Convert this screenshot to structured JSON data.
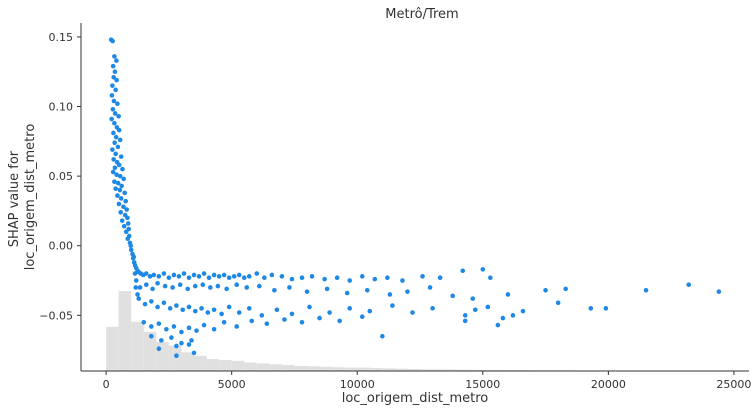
{
  "chart_data": {
    "type": "scatter",
    "title": "Metrô/Trem",
    "xlabel": "loc_origem_dist_metro",
    "ylabel_lines": [
      "SHAP value for",
      "loc_origem_dist_metro"
    ],
    "xlim": [
      -1000,
      25600
    ],
    "ylim": [
      -0.09,
      0.16
    ],
    "x_ticks": [
      0,
      5000,
      10000,
      15000,
      20000,
      25000
    ],
    "x_tick_labels": [
      "0",
      "5000",
      "10000",
      "15000",
      "20000",
      "25000"
    ],
    "y_ticks": [
      -0.05,
      0.0,
      0.05,
      0.1,
      0.15
    ],
    "y_tick_labels": [
      "−0.05",
      "0.00",
      "0.05",
      "0.10",
      "0.15"
    ],
    "point_color": "#1e88e5",
    "histogram_color": "#e0e0e0",
    "histogram_bin_width": 500,
    "histogram_heights": [
      0.26,
      0.47,
      0.29,
      0.23,
      0.17,
      0.15,
      0.11,
      0.09,
      0.07,
      0.065,
      0.06,
      0.05,
      0.045,
      0.04,
      0.035,
      0.03,
      0.028,
      0.025,
      0.022,
      0.02,
      0.02,
      0.018,
      0.016,
      0.014,
      0.012,
      0.01,
      0.01,
      0.009,
      0.008,
      0.007,
      0.006,
      0.006,
      0.005,
      0.005,
      0.004,
      0.004,
      0.004,
      0.003,
      0.003,
      0.003,
      0.003,
      0.003,
      0.002,
      0.002,
      0.002,
      0.002,
      0.002,
      0.002,
      0.002,
      0.002
    ],
    "points": [
      [
        200,
        0.148
      ],
      [
        260,
        0.147
      ],
      [
        330,
        0.136
      ],
      [
        410,
        0.133
      ],
      [
        280,
        0.129
      ],
      [
        350,
        0.125
      ],
      [
        300,
        0.121
      ],
      [
        420,
        0.119
      ],
      [
        250,
        0.115
      ],
      [
        380,
        0.112
      ],
      [
        230,
        0.108
      ],
      [
        310,
        0.104
      ],
      [
        450,
        0.102
      ],
      [
        270,
        0.098
      ],
      [
        360,
        0.095
      ],
      [
        500,
        0.093
      ],
      [
        220,
        0.091
      ],
      [
        330,
        0.088
      ],
      [
        430,
        0.085
      ],
      [
        520,
        0.083
      ],
      [
        290,
        0.081
      ],
      [
        400,
        0.078
      ],
      [
        560,
        0.076
      ],
      [
        340,
        0.074
      ],
      [
        470,
        0.071
      ],
      [
        250,
        0.069
      ],
      [
        380,
        0.066
      ],
      [
        600,
        0.064
      ],
      [
        300,
        0.062
      ],
      [
        440,
        0.06
      ],
      [
        520,
        0.058
      ],
      [
        350,
        0.056
      ],
      [
        650,
        0.055
      ],
      [
        280,
        0.053
      ],
      [
        420,
        0.051
      ],
      [
        560,
        0.05
      ],
      [
        700,
        0.048
      ],
      [
        330,
        0.046
      ],
      [
        480,
        0.045
      ],
      [
        620,
        0.043
      ],
      [
        380,
        0.041
      ],
      [
        550,
        0.04
      ],
      [
        740,
        0.038
      ],
      [
        450,
        0.036
      ],
      [
        600,
        0.034
      ],
      [
        780,
        0.032
      ],
      [
        510,
        0.03
      ],
      [
        690,
        0.028
      ],
      [
        820,
        0.026
      ],
      [
        580,
        0.024
      ],
      [
        760,
        0.022
      ],
      [
        850,
        0.02
      ],
      [
        640,
        0.018
      ],
      [
        880,
        0.016
      ],
      [
        720,
        0.014
      ],
      [
        900,
        0.012
      ],
      [
        800,
        0.01
      ],
      [
        920,
        0.007
      ],
      [
        860,
        0.005
      ],
      [
        950,
        0.002
      ],
      [
        980,
        0.0
      ],
      [
        1000,
        -0.003
      ],
      [
        1050,
        -0.006
      ],
      [
        1080,
        -0.009
      ],
      [
        1120,
        -0.012
      ],
      [
        1150,
        -0.014
      ],
      [
        1200,
        -0.016
      ],
      [
        1250,
        -0.018
      ],
      [
        1300,
        -0.019
      ],
      [
        1380,
        -0.02
      ],
      [
        1480,
        -0.021
      ],
      [
        1600,
        -0.02
      ],
      [
        1750,
        -0.022
      ],
      [
        1900,
        -0.021
      ],
      [
        2100,
        -0.022
      ],
      [
        2300,
        -0.02
      ],
      [
        2500,
        -0.023
      ],
      [
        2700,
        -0.021
      ],
      [
        2900,
        -0.022
      ],
      [
        3100,
        -0.02
      ],
      [
        3300,
        -0.023
      ],
      [
        3500,
        -0.021
      ],
      [
        3700,
        -0.022
      ],
      [
        3900,
        -0.02
      ],
      [
        4100,
        -0.023
      ],
      [
        4300,
        -0.021
      ],
      [
        4500,
        -0.022
      ],
      [
        4700,
        -0.021
      ],
      [
        4900,
        -0.023
      ],
      [
        5100,
        -0.022
      ],
      [
        5300,
        -0.021
      ],
      [
        5500,
        -0.023
      ],
      [
        5700,
        -0.022
      ],
      [
        6000,
        -0.02
      ],
      [
        6300,
        -0.023
      ],
      [
        6600,
        -0.021
      ],
      [
        7000,
        -0.022
      ],
      [
        7400,
        -0.024
      ],
      [
        7800,
        -0.023
      ],
      [
        8200,
        -0.022
      ],
      [
        8700,
        -0.024
      ],
      [
        9200,
        -0.023
      ],
      [
        9700,
        -0.025
      ],
      [
        10200,
        -0.022
      ],
      [
        10700,
        -0.024
      ],
      [
        11200,
        -0.023
      ],
      [
        11800,
        -0.025
      ],
      [
        12600,
        -0.022
      ],
      [
        13300,
        -0.023
      ],
      [
        14200,
        -0.018
      ],
      [
        15000,
        -0.017
      ],
      [
        15300,
        -0.023
      ],
      [
        1350,
        -0.03
      ],
      [
        1600,
        -0.028
      ],
      [
        1850,
        -0.031
      ],
      [
        2050,
        -0.027
      ],
      [
        2350,
        -0.029
      ],
      [
        2650,
        -0.03
      ],
      [
        2950,
        -0.028
      ],
      [
        3250,
        -0.031
      ],
      [
        3550,
        -0.029
      ],
      [
        3850,
        -0.028
      ],
      [
        4150,
        -0.03
      ],
      [
        4450,
        -0.029
      ],
      [
        4800,
        -0.031
      ],
      [
        5200,
        -0.028
      ],
      [
        5600,
        -0.03
      ],
      [
        6100,
        -0.029
      ],
      [
        6700,
        -0.032
      ],
      [
        7300,
        -0.03
      ],
      [
        8000,
        -0.033
      ],
      [
        8800,
        -0.031
      ],
      [
        9600,
        -0.034
      ],
      [
        10400,
        -0.032
      ],
      [
        11300,
        -0.035
      ],
      [
        12000,
        -0.033
      ],
      [
        12900,
        -0.03
      ],
      [
        13800,
        -0.036
      ],
      [
        14600,
        -0.038
      ],
      [
        16000,
        -0.035
      ],
      [
        17500,
        -0.032
      ],
      [
        18300,
        -0.031
      ],
      [
        21500,
        -0.032
      ],
      [
        23200,
        -0.028
      ],
      [
        24400,
        -0.033
      ],
      [
        1300,
        -0.038
      ],
      [
        1550,
        -0.042
      ],
      [
        1800,
        -0.04
      ],
      [
        2050,
        -0.044
      ],
      [
        2300,
        -0.041
      ],
      [
        2550,
        -0.045
      ],
      [
        2800,
        -0.043
      ],
      [
        3050,
        -0.046
      ],
      [
        3300,
        -0.044
      ],
      [
        3550,
        -0.047
      ],
      [
        3800,
        -0.045
      ],
      [
        4050,
        -0.048
      ],
      [
        4300,
        -0.046
      ],
      [
        4600,
        -0.049
      ],
      [
        4900,
        -0.044
      ],
      [
        5300,
        -0.048
      ],
      [
        5700,
        -0.045
      ],
      [
        6200,
        -0.05
      ],
      [
        6800,
        -0.046
      ],
      [
        7400,
        -0.049
      ],
      [
        8100,
        -0.044
      ],
      [
        8900,
        -0.048
      ],
      [
        9700,
        -0.045
      ],
      [
        10500,
        -0.047
      ],
      [
        11400,
        -0.043
      ],
      [
        12200,
        -0.048
      ],
      [
        13000,
        -0.045
      ],
      [
        14300,
        -0.05
      ],
      [
        14700,
        -0.046
      ],
      [
        15200,
        -0.044
      ],
      [
        15800,
        -0.052
      ],
      [
        16200,
        -0.05
      ],
      [
        16600,
        -0.047
      ],
      [
        18000,
        -0.041
      ],
      [
        19300,
        -0.045
      ],
      [
        19900,
        -0.045
      ],
      [
        1500,
        -0.055
      ],
      [
        1800,
        -0.058
      ],
      [
        2100,
        -0.056
      ],
      [
        2400,
        -0.06
      ],
      [
        2700,
        -0.058
      ],
      [
        3000,
        -0.062
      ],
      [
        3300,
        -0.059
      ],
      [
        3600,
        -0.061
      ],
      [
        3900,
        -0.057
      ],
      [
        4300,
        -0.06
      ],
      [
        4700,
        -0.055
      ],
      [
        5200,
        -0.058
      ],
      [
        5800,
        -0.054
      ],
      [
        6400,
        -0.056
      ],
      [
        7100,
        -0.053
      ],
      [
        7800,
        -0.055
      ],
      [
        8500,
        -0.052
      ],
      [
        9300,
        -0.054
      ],
      [
        10200,
        -0.051
      ],
      [
        1800,
        -0.065
      ],
      [
        2200,
        -0.068
      ],
      [
        2600,
        -0.066
      ],
      [
        3000,
        -0.07
      ],
      [
        3400,
        -0.068
      ],
      [
        2100,
        -0.074
      ],
      [
        2800,
        -0.072
      ],
      [
        3300,
        -0.071
      ],
      [
        2800,
        -0.079
      ],
      [
        3500,
        -0.077
      ],
      [
        11000,
        -0.065
      ],
      [
        14300,
        -0.054
      ],
      [
        15600,
        -0.057
      ],
      [
        1100,
        -0.008
      ],
      [
        1150,
        -0.02
      ],
      [
        1200,
        -0.025
      ],
      [
        1250,
        -0.035
      ],
      [
        1180,
        -0.03
      ]
    ]
  }
}
